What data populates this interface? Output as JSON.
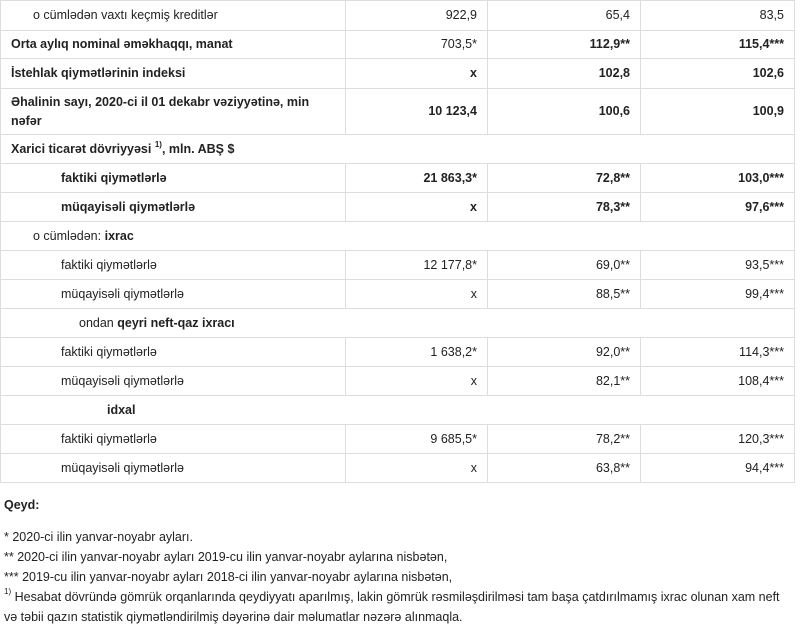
{
  "table": {
    "rows": [
      {
        "label": "o cümlədən vaxtı keçmiş kreditlər",
        "values": [
          "922,9",
          "65,4",
          "83,5"
        ]
      },
      {
        "label": "Orta aylıq nominal əməkhaqqı, manat",
        "values": [
          "703,5*",
          "112,9**",
          "115,4***"
        ]
      },
      {
        "label": "İstehlak qiymətlərinin indeksi",
        "values": [
          "x",
          "102,8",
          "102,6"
        ]
      },
      {
        "label": "Əhalinin sayı, 2020-ci il 01 dekabr vəziyyətinə, min nəfər",
        "values": [
          "10 123,4",
          "100,6",
          "100,9"
        ]
      },
      {
        "label": "Xarici ticarət dövriyyəsi",
        "label_sup": "1)",
        "label_tail": ", mln. ABŞ $"
      },
      {
        "label": "faktiki qiymətlərlə",
        "values": [
          "21 863,3*",
          "72,8**",
          "103,0***"
        ]
      },
      {
        "label": "müqayisəli qiymətlərlə",
        "values": [
          "x",
          "78,3**",
          "97,6***"
        ]
      },
      {
        "label_prefix": "o cümlədən:",
        "label": "ixrac"
      },
      {
        "label": "faktiki qiymətlərlə",
        "values": [
          "12 177,8*",
          "69,0**",
          "93,5***"
        ]
      },
      {
        "label": "müqayisəli qiymətlərlə",
        "values": [
          "x",
          "88,5**",
          "99,4***"
        ]
      },
      {
        "label_prefix": "ondan",
        "label": "qeyri neft-qaz ixracı"
      },
      {
        "label": "faktiki qiymətlərlə",
        "values": [
          "1 638,2*",
          "92,0**",
          "114,3***"
        ]
      },
      {
        "label": "müqayisəli qiymətlərlə",
        "values": [
          "x",
          "82,1**",
          "108,4***"
        ]
      },
      {
        "label": "idxal"
      },
      {
        "label": "faktiki qiymətlərlə",
        "values": [
          "9 685,5*",
          "78,2**",
          "120,3***"
        ]
      },
      {
        "label": "müqayisəli qiymətlərlə",
        "values": [
          "x",
          "63,8**",
          "94,4***"
        ]
      }
    ]
  },
  "notes": {
    "title": "Qeyd:",
    "items": [
      {
        "text": "* 2020-ci ilin yanvar-noyabr ayları."
      },
      {
        "text": "** 2020-ci ilin yanvar-noyabr ayları 2019-cu ilin yanvar-noyabr aylarına nisbətən,"
      },
      {
        "text": "*** 2019-cu ilin yanvar-noyabr ayları 2018-ci ilin yanvar-noyabr aylarına nisbətən,"
      },
      {
        "sup": "1)",
        "text": "Hesabat dövründə gömrük orqanlarında qeydiyyatı aparılmış, lakin gömrük rəsmiləşdirilməsi tam başa çatdırılmamış ixrac olunan xam neft və təbii qazın statistik qiymətləndirilmiş dəyərinə dair məlumatlar nəzərə alınmaqla."
      }
    ]
  }
}
